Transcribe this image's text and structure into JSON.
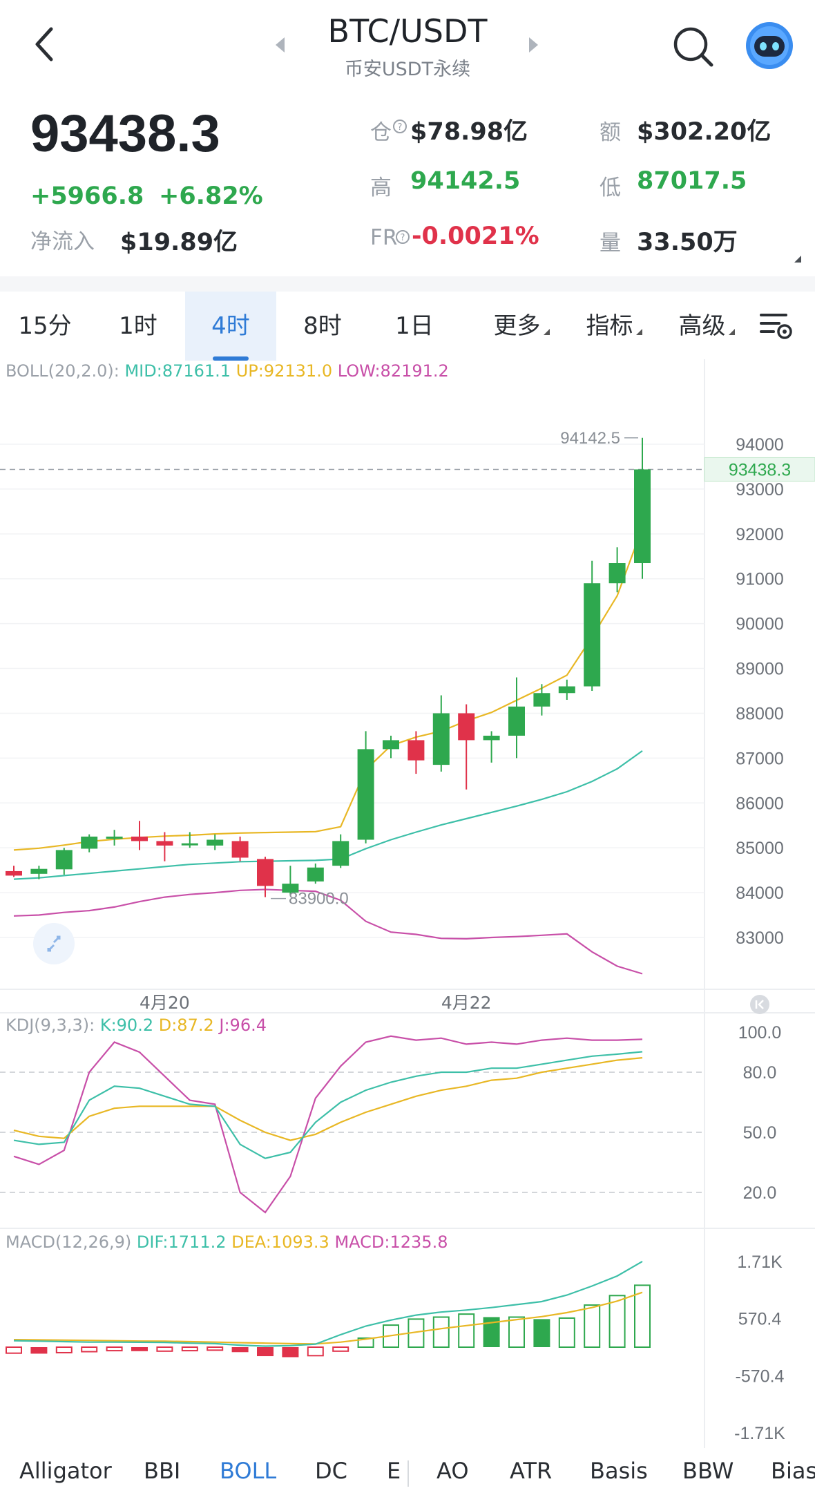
{
  "header": {
    "back_icon": "chevron-left-icon",
    "title": "BTC/USDT",
    "subtitle": "币安USDT永续",
    "prev_icon": "triangle-left-icon",
    "next_icon": "triangle-right-icon",
    "search_icon": "search-icon",
    "avatar_icon": "robot-avatar-icon"
  },
  "ticker": {
    "price": "93438.3",
    "change": "+5966.8",
    "change_pct": "+6.82%",
    "netflow_label": "净流入",
    "netflow_value": "$19.89亿",
    "oi_label": "仓",
    "oi_value": "$78.98亿",
    "amount_label": "额",
    "amount_value": "$302.20亿",
    "high_label": "高",
    "high_value": "94142.5",
    "low_label": "低",
    "low_value": "87017.5",
    "fr_label": "FR",
    "fr_value": "-0.0021%",
    "vol_label": "量",
    "vol_value": "33.50万"
  },
  "tabs": [
    {
      "label": "15分"
    },
    {
      "label": "1时"
    },
    {
      "label": "4时",
      "active": true
    },
    {
      "label": "8时"
    },
    {
      "label": "1日"
    },
    {
      "label": "更多"
    },
    {
      "label": "指标"
    },
    {
      "label": "高级"
    }
  ],
  "boll": {
    "name": "BOLL(20,2.0):",
    "mid": "MID:87161.1",
    "up": "UP:92131.0",
    "low": "LOW:82191.2"
  },
  "kdj": {
    "name": "KDJ(9,3,3):",
    "k": "K:90.2",
    "d": "D:87.2",
    "j": "J:96.4"
  },
  "macd": {
    "name": "MACD(12,26,9)",
    "dif": "DIF:1711.2",
    "dea": "DEA:1093.3",
    "macd": "MACD:1235.8"
  },
  "colors": {
    "up": "#2ea84e",
    "down": "#e0324a",
    "mid": "#3dbfa8",
    "upper": "#e8b724",
    "lower": "#c84fa8",
    "accent": "#2f7bd6"
  },
  "chart_data": {
    "type": "candlestick",
    "price_ticks": [
      94000,
      93000,
      92000,
      91000,
      90000,
      89000,
      88000,
      87000,
      86000,
      85000,
      84000,
      83000
    ],
    "current_price_label": "93438.3",
    "high_label": "94142.5",
    "low_label": "83900.0",
    "x_labels": [
      {
        "label": "4月20",
        "index": 6
      },
      {
        "label": "4月22",
        "index": 18
      }
    ],
    "candles": [
      {
        "o": 84480,
        "h": 84600,
        "l": 84350,
        "c": 84380
      },
      {
        "o": 84420,
        "h": 84600,
        "l": 84300,
        "c": 84530
      },
      {
        "o": 84520,
        "h": 85000,
        "l": 84400,
        "c": 84950
      },
      {
        "o": 84980,
        "h": 85300,
        "l": 84900,
        "c": 85250
      },
      {
        "o": 85200,
        "h": 85400,
        "l": 85050,
        "c": 85250
      },
      {
        "o": 85250,
        "h": 85600,
        "l": 84950,
        "c": 85150
      },
      {
        "o": 85150,
        "h": 85350,
        "l": 84700,
        "c": 85050
      },
      {
        "o": 85100,
        "h": 85350,
        "l": 85000,
        "c": 85100
      },
      {
        "o": 85050,
        "h": 85300,
        "l": 84950,
        "c": 85180
      },
      {
        "o": 85150,
        "h": 85250,
        "l": 84700,
        "c": 84780
      },
      {
        "o": 84750,
        "h": 84800,
        "l": 83900,
        "c": 84150
      },
      {
        "o": 84000,
        "h": 84600,
        "l": 83950,
        "c": 84200
      },
      {
        "o": 84250,
        "h": 84650,
        "l": 84200,
        "c": 84560
      },
      {
        "o": 84600,
        "h": 85300,
        "l": 84550,
        "c": 85150
      },
      {
        "o": 85180,
        "h": 87600,
        "l": 85100,
        "c": 87200
      },
      {
        "o": 87200,
        "h": 87500,
        "l": 87000,
        "c": 87400
      },
      {
        "o": 87400,
        "h": 87600,
        "l": 86650,
        "c": 86950
      },
      {
        "o": 86850,
        "h": 88400,
        "l": 86700,
        "c": 88000
      },
      {
        "o": 88000,
        "h": 88200,
        "l": 86300,
        "c": 87400
      },
      {
        "o": 87400,
        "h": 87600,
        "l": 86900,
        "c": 87500
      },
      {
        "o": 87500,
        "h": 88800,
        "l": 87000,
        "c": 88150
      },
      {
        "o": 88150,
        "h": 88650,
        "l": 87950,
        "c": 88450
      },
      {
        "o": 88450,
        "h": 88750,
        "l": 88300,
        "c": 88600
      },
      {
        "o": 88600,
        "h": 91400,
        "l": 88500,
        "c": 90900
      },
      {
        "o": 90900,
        "h": 91700,
        "l": 90700,
        "c": 91350
      },
      {
        "o": 91350,
        "h": 94142.5,
        "l": 91000,
        "c": 93438.3
      }
    ],
    "boll_mid": [
      84300,
      84330,
      84380,
      84430,
      84480,
      84530,
      84580,
      84630,
      84660,
      84690,
      84700,
      84710,
      84720,
      84750,
      84980,
      85180,
      85350,
      85510,
      85650,
      85790,
      85930,
      86080,
      86250,
      86480,
      86760,
      87161
    ],
    "boll_up": [
      84950,
      84990,
      85060,
      85140,
      85190,
      85230,
      85260,
      85280,
      85310,
      85330,
      85340,
      85350,
      85360,
      85470,
      86740,
      87280,
      87470,
      87600,
      87830,
      88020,
      88290,
      88560,
      88850,
      89700,
      90620,
      92131
    ],
    "boll_low": [
      83480,
      83500,
      83560,
      83600,
      83680,
      83800,
      83900,
      83960,
      84000,
      84050,
      84070,
      84050,
      84030,
      83830,
      83360,
      83120,
      83070,
      82980,
      82970,
      83000,
      83020,
      83050,
      83080,
      82680,
      82360,
      82191
    ],
    "kdj_ticks": [
      100.0,
      80.0,
      50.0,
      20.0
    ],
    "kdj_k": [
      46,
      44,
      45,
      66,
      73,
      72,
      68,
      64,
      63,
      44,
      37,
      40,
      55,
      65,
      71,
      75,
      78,
      80,
      80,
      82,
      82,
      84,
      86,
      88,
      89,
      90.2
    ],
    "kdj_d": [
      51,
      48,
      47,
      58,
      62,
      63,
      63,
      63,
      63,
      56,
      50,
      46,
      49,
      55,
      60,
      64,
      68,
      71,
      73,
      76,
      77,
      80,
      82,
      84,
      86,
      87.2
    ],
    "kdj_j": [
      38,
      34,
      41,
      80,
      95,
      90,
      78,
      66,
      64,
      20,
      10,
      28,
      67,
      83,
      95,
      98,
      96,
      97,
      94,
      95,
      94,
      96,
      97,
      96,
      96,
      96.4
    ],
    "macd_ticks": [
      "1.71K",
      "570.4",
      "-570.4",
      "-1.71K"
    ],
    "macd_dif": [
      130,
      120,
      110,
      100,
      100,
      98,
      95,
      80,
      70,
      40,
      20,
      30,
      60,
      250,
      420,
      540,
      640,
      700,
      740,
      790,
      850,
      910,
      1040,
      1220,
      1420,
      1711.2
    ],
    "macd_dea": [
      150,
      145,
      140,
      135,
      128,
      122,
      118,
      110,
      100,
      90,
      80,
      70,
      65,
      100,
      160,
      230,
      300,
      370,
      430,
      490,
      550,
      610,
      690,
      790,
      920,
      1093.3
    ],
    "macd_hist": [
      -120,
      -130,
      -110,
      -90,
      -70,
      -80,
      -80,
      -70,
      -60,
      -100,
      -180,
      -200,
      -170,
      -80,
      180,
      440,
      560,
      600,
      660,
      600,
      600,
      560,
      580,
      840,
      1030,
      1235.8
    ]
  },
  "bottom_tabs": [
    {
      "label": "Alligator"
    },
    {
      "label": "BBI"
    },
    {
      "label": "BOLL",
      "active": true
    },
    {
      "label": "DC"
    },
    {
      "label": "E"
    },
    {
      "label": "AO"
    },
    {
      "label": "ATR"
    },
    {
      "label": "Basis"
    },
    {
      "label": "BBW"
    },
    {
      "label": "Bias"
    }
  ]
}
